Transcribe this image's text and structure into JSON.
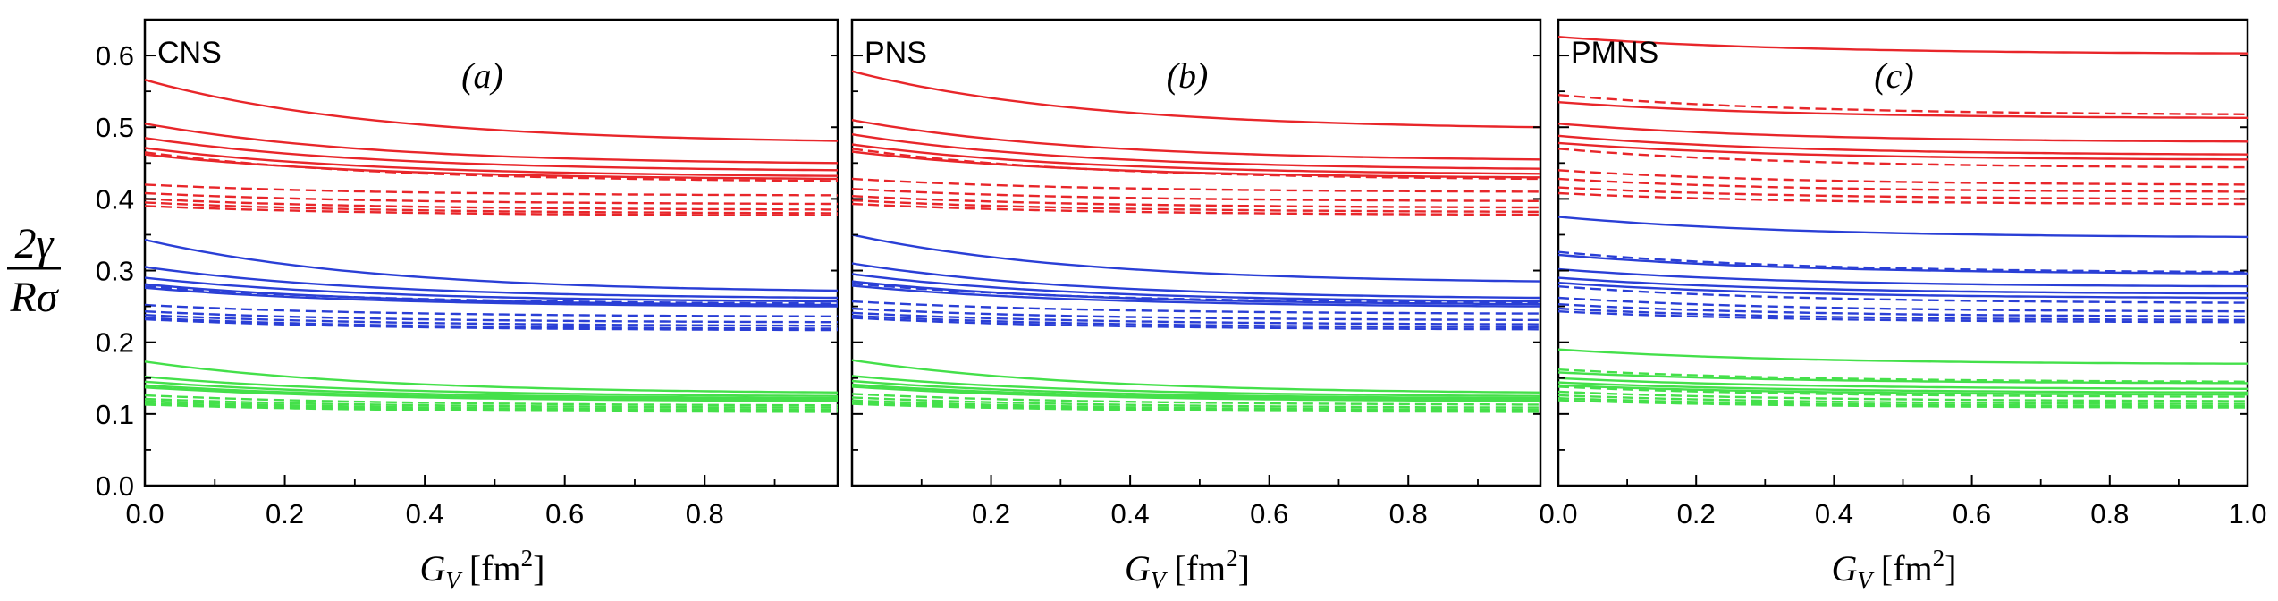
{
  "colors": {
    "red": "#e8262a",
    "blue": "#2a3fd6",
    "green": "#44e04a",
    "axis": "#000000"
  },
  "y_axis": {
    "label_numerator": "2γ",
    "label_denominator": "Rσ",
    "range": [
      0.0,
      0.65
    ],
    "ticks": [
      0.0,
      0.1,
      0.2,
      0.3,
      0.4,
      0.5,
      0.6
    ],
    "tick_labels": [
      "0.0",
      "0.1",
      "0.2",
      "0.3",
      "0.4",
      "0.5",
      "0.6"
    ]
  },
  "chart_data": [
    {
      "type": "line",
      "panel_name": "CNS",
      "panel_letter": "(a)",
      "xlabel": "G_V [fm^2]",
      "xlabel_main": "G",
      "xlabel_sub": "V",
      "xlabel_unit": "[fm",
      "xlabel_sup": "2",
      "xlabel_close": "]",
      "xlim": [
        0.0,
        0.99
      ],
      "ylim": [
        0.0,
        0.65
      ],
      "x_ticks": [
        0.0,
        0.2,
        0.4,
        0.6,
        0.8
      ],
      "x_tick_labels": [
        "0.0",
        "0.2",
        "0.4",
        "0.6",
        "0.8"
      ],
      "series": [
        {
          "color": "red",
          "style": "solid",
          "y0": 0.566,
          "y1": 0.481
        },
        {
          "color": "red",
          "style": "solid",
          "y0": 0.505,
          "y1": 0.45
        },
        {
          "color": "red",
          "style": "solid",
          "y0": 0.485,
          "y1": 0.44
        },
        {
          "color": "red",
          "style": "solid",
          "y0": 0.471,
          "y1": 0.432
        },
        {
          "color": "red",
          "style": "solid",
          "y0": 0.462,
          "y1": 0.428
        },
        {
          "color": "red",
          "style": "dashed",
          "y0": 0.465,
          "y1": 0.425
        },
        {
          "color": "red",
          "style": "dashed",
          "y0": 0.42,
          "y1": 0.405
        },
        {
          "color": "red",
          "style": "dashed",
          "y0": 0.408,
          "y1": 0.393
        },
        {
          "color": "red",
          "style": "dashed",
          "y0": 0.4,
          "y1": 0.385
        },
        {
          "color": "red",
          "style": "dashed",
          "y0": 0.395,
          "y1": 0.38
        },
        {
          "color": "red",
          "style": "dashed",
          "y0": 0.39,
          "y1": 0.377
        },
        {
          "color": "blue",
          "style": "solid",
          "y0": 0.343,
          "y1": 0.272
        },
        {
          "color": "blue",
          "style": "solid",
          "y0": 0.305,
          "y1": 0.262
        },
        {
          "color": "blue",
          "style": "solid",
          "y0": 0.29,
          "y1": 0.257
        },
        {
          "color": "blue",
          "style": "solid",
          "y0": 0.281,
          "y1": 0.252
        },
        {
          "color": "blue",
          "style": "solid",
          "y0": 0.276,
          "y1": 0.25
        },
        {
          "color": "blue",
          "style": "dashed",
          "y0": 0.278,
          "y1": 0.254
        },
        {
          "color": "blue",
          "style": "dashed",
          "y0": 0.252,
          "y1": 0.236
        },
        {
          "color": "blue",
          "style": "dashed",
          "y0": 0.243,
          "y1": 0.228
        },
        {
          "color": "blue",
          "style": "dashed",
          "y0": 0.238,
          "y1": 0.223
        },
        {
          "color": "blue",
          "style": "dashed",
          "y0": 0.234,
          "y1": 0.219
        },
        {
          "color": "blue",
          "style": "dashed",
          "y0": 0.232,
          "y1": 0.217
        },
        {
          "color": "green",
          "style": "solid",
          "y0": 0.173,
          "y1": 0.13
        },
        {
          "color": "green",
          "style": "solid",
          "y0": 0.152,
          "y1": 0.125
        },
        {
          "color": "green",
          "style": "solid",
          "y0": 0.145,
          "y1": 0.122
        },
        {
          "color": "green",
          "style": "solid",
          "y0": 0.14,
          "y1": 0.12
        },
        {
          "color": "green",
          "style": "solid",
          "y0": 0.137,
          "y1": 0.118
        },
        {
          "color": "green",
          "style": "dashed",
          "y0": 0.138,
          "y1": 0.12
        },
        {
          "color": "green",
          "style": "dashed",
          "y0": 0.126,
          "y1": 0.112
        },
        {
          "color": "green",
          "style": "dashed",
          "y0": 0.121,
          "y1": 0.109
        },
        {
          "color": "green",
          "style": "dashed",
          "y0": 0.118,
          "y1": 0.106
        },
        {
          "color": "green",
          "style": "dashed",
          "y0": 0.115,
          "y1": 0.104
        },
        {
          "color": "green",
          "style": "dashed",
          "y0": 0.113,
          "y1": 0.103
        }
      ]
    },
    {
      "type": "line",
      "panel_name": "PNS",
      "panel_letter": "(b)",
      "xlabel": "G_V [fm^2]",
      "xlabel_main": "G",
      "xlabel_sub": "V",
      "xlabel_unit": "[fm",
      "xlabel_sup": "2",
      "xlabel_close": "]",
      "xlim": [
        0.0,
        0.99
      ],
      "ylim": [
        0.0,
        0.65
      ],
      "x_ticks": [
        0.2,
        0.4,
        0.6,
        0.8
      ],
      "x_tick_labels": [
        "0.2",
        "0.4",
        "0.6",
        "0.8"
      ],
      "series": [
        {
          "color": "red",
          "style": "solid",
          "y0": 0.578,
          "y1": 0.5
        },
        {
          "color": "red",
          "style": "solid",
          "y0": 0.51,
          "y1": 0.455
        },
        {
          "color": "red",
          "style": "solid",
          "y0": 0.49,
          "y1": 0.442
        },
        {
          "color": "red",
          "style": "solid",
          "y0": 0.476,
          "y1": 0.435
        },
        {
          "color": "red",
          "style": "solid",
          "y0": 0.466,
          "y1": 0.43
        },
        {
          "color": "red",
          "style": "dashed",
          "y0": 0.47,
          "y1": 0.428
        },
        {
          "color": "red",
          "style": "dashed",
          "y0": 0.428,
          "y1": 0.41
        },
        {
          "color": "red",
          "style": "dashed",
          "y0": 0.414,
          "y1": 0.397
        },
        {
          "color": "red",
          "style": "dashed",
          "y0": 0.404,
          "y1": 0.388
        },
        {
          "color": "red",
          "style": "dashed",
          "y0": 0.398,
          "y1": 0.382
        },
        {
          "color": "red",
          "style": "dashed",
          "y0": 0.393,
          "y1": 0.378
        },
        {
          "color": "blue",
          "style": "solid",
          "y0": 0.35,
          "y1": 0.285
        },
        {
          "color": "blue",
          "style": "solid",
          "y0": 0.31,
          "y1": 0.262
        },
        {
          "color": "blue",
          "style": "solid",
          "y0": 0.295,
          "y1": 0.257
        },
        {
          "color": "blue",
          "style": "solid",
          "y0": 0.285,
          "y1": 0.253
        },
        {
          "color": "blue",
          "style": "solid",
          "y0": 0.279,
          "y1": 0.25
        },
        {
          "color": "blue",
          "style": "dashed",
          "y0": 0.282,
          "y1": 0.255
        },
        {
          "color": "blue",
          "style": "dashed",
          "y0": 0.257,
          "y1": 0.24
        },
        {
          "color": "blue",
          "style": "dashed",
          "y0": 0.247,
          "y1": 0.231
        },
        {
          "color": "blue",
          "style": "dashed",
          "y0": 0.241,
          "y1": 0.225
        },
        {
          "color": "blue",
          "style": "dashed",
          "y0": 0.237,
          "y1": 0.221
        },
        {
          "color": "blue",
          "style": "dashed",
          "y0": 0.234,
          "y1": 0.218
        },
        {
          "color": "green",
          "style": "solid",
          "y0": 0.175,
          "y1": 0.13
        },
        {
          "color": "green",
          "style": "solid",
          "y0": 0.153,
          "y1": 0.125
        },
        {
          "color": "green",
          "style": "solid",
          "y0": 0.146,
          "y1": 0.122
        },
        {
          "color": "green",
          "style": "solid",
          "y0": 0.141,
          "y1": 0.12
        },
        {
          "color": "green",
          "style": "solid",
          "y0": 0.138,
          "y1": 0.118
        },
        {
          "color": "green",
          "style": "dashed",
          "y0": 0.14,
          "y1": 0.121
        },
        {
          "color": "green",
          "style": "dashed",
          "y0": 0.128,
          "y1": 0.113
        },
        {
          "color": "green",
          "style": "dashed",
          "y0": 0.123,
          "y1": 0.109
        },
        {
          "color": "green",
          "style": "dashed",
          "y0": 0.119,
          "y1": 0.106
        },
        {
          "color": "green",
          "style": "dashed",
          "y0": 0.116,
          "y1": 0.104
        },
        {
          "color": "green",
          "style": "dashed",
          "y0": 0.114,
          "y1": 0.103
        }
      ]
    },
    {
      "type": "line",
      "panel_name": "PMNS",
      "panel_letter": "(c)",
      "xlabel": "G_V [fm^2]",
      "xlabel_main": "G",
      "xlabel_sub": "V",
      "xlabel_unit": "[fm",
      "xlabel_sup": "2",
      "xlabel_close": "]",
      "xlim": [
        0.0,
        1.0
      ],
      "ylim": [
        0.0,
        0.65
      ],
      "x_ticks": [
        0.0,
        0.2,
        0.4,
        0.6,
        0.8,
        1.0
      ],
      "x_tick_labels": [
        "0.0",
        "0.2",
        "0.4",
        "0.6",
        "0.8",
        "1.0"
      ],
      "series": [
        {
          "color": "red",
          "style": "solid",
          "y0": 0.626,
          "y1": 0.603
        },
        {
          "color": "red",
          "style": "solid",
          "y0": 0.535,
          "y1": 0.513
        },
        {
          "color": "red",
          "style": "solid",
          "y0": 0.505,
          "y1": 0.48
        },
        {
          "color": "red",
          "style": "solid",
          "y0": 0.488,
          "y1": 0.462
        },
        {
          "color": "red",
          "style": "solid",
          "y0": 0.478,
          "y1": 0.455
        },
        {
          "color": "red",
          "style": "dashed",
          "y0": 0.545,
          "y1": 0.518
        },
        {
          "color": "red",
          "style": "dashed",
          "y0": 0.47,
          "y1": 0.444
        },
        {
          "color": "red",
          "style": "dashed",
          "y0": 0.44,
          "y1": 0.42
        },
        {
          "color": "red",
          "style": "dashed",
          "y0": 0.428,
          "y1": 0.41
        },
        {
          "color": "red",
          "style": "dashed",
          "y0": 0.416,
          "y1": 0.4
        },
        {
          "color": "red",
          "style": "dashed",
          "y0": 0.408,
          "y1": 0.393
        },
        {
          "color": "blue",
          "style": "solid",
          "y0": 0.375,
          "y1": 0.347
        },
        {
          "color": "blue",
          "style": "solid",
          "y0": 0.322,
          "y1": 0.296
        },
        {
          "color": "blue",
          "style": "solid",
          "y0": 0.302,
          "y1": 0.278
        },
        {
          "color": "blue",
          "style": "solid",
          "y0": 0.29,
          "y1": 0.268
        },
        {
          "color": "blue",
          "style": "solid",
          "y0": 0.283,
          "y1": 0.262
        },
        {
          "color": "blue",
          "style": "dashed",
          "y0": 0.326,
          "y1": 0.298
        },
        {
          "color": "blue",
          "style": "dashed",
          "y0": 0.278,
          "y1": 0.255
        },
        {
          "color": "blue",
          "style": "dashed",
          "y0": 0.262,
          "y1": 0.243
        },
        {
          "color": "blue",
          "style": "dashed",
          "y0": 0.253,
          "y1": 0.236
        },
        {
          "color": "blue",
          "style": "dashed",
          "y0": 0.247,
          "y1": 0.231
        },
        {
          "color": "blue",
          "style": "dashed",
          "y0": 0.243,
          "y1": 0.228
        },
        {
          "color": "green",
          "style": "solid",
          "y0": 0.19,
          "y1": 0.17
        },
        {
          "color": "green",
          "style": "solid",
          "y0": 0.158,
          "y1": 0.143
        },
        {
          "color": "green",
          "style": "solid",
          "y0": 0.15,
          "y1": 0.135
        },
        {
          "color": "green",
          "style": "solid",
          "y0": 0.144,
          "y1": 0.13
        },
        {
          "color": "green",
          "style": "solid",
          "y0": 0.14,
          "y1": 0.127
        },
        {
          "color": "green",
          "style": "dashed",
          "y0": 0.162,
          "y1": 0.145
        },
        {
          "color": "green",
          "style": "dashed",
          "y0": 0.138,
          "y1": 0.124
        },
        {
          "color": "green",
          "style": "dashed",
          "y0": 0.131,
          "y1": 0.118
        },
        {
          "color": "green",
          "style": "dashed",
          "y0": 0.126,
          "y1": 0.114
        },
        {
          "color": "green",
          "style": "dashed",
          "y0": 0.122,
          "y1": 0.111
        },
        {
          "color": "green",
          "style": "dashed",
          "y0": 0.119,
          "y1": 0.109
        }
      ]
    }
  ]
}
